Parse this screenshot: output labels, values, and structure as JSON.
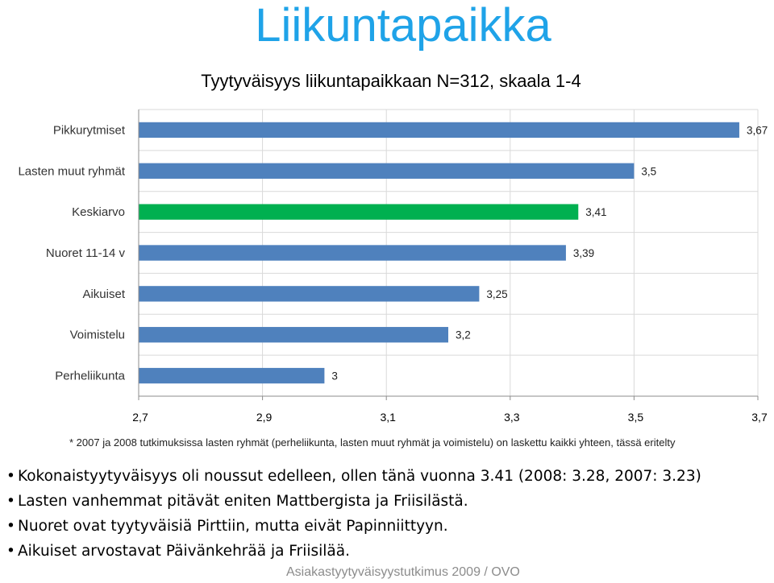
{
  "slide": {
    "title": "Liikuntapaikka",
    "footnote": "* 2007 ja 2008 tutkimuksissa lasten ryhmät  (perheliikunta, lasten muut ryhmät ja voimistelu) on laskettu kaikki yhteen, tässä eritelty",
    "bullets": [
      "Kokonaistyytyväisyys oli noussut edelleen, ollen tänä vuonna 3.41 (2008: 3.28, 2007: 3.23)",
      "Lasten vanhemmat pitävät eniten Mattbergista ja Friisilästä.",
      "Nuoret ovat tyytyväisiä Pirttiin, mutta eivät Papinniittyyn.",
      "Aikuiset arvostavat Päivänkehrää ja Friisilää."
    ],
    "source": "Asiakastyytyväisyystutkimus 2009 / OVO"
  },
  "chart_data": {
    "type": "bar",
    "orientation": "horizontal",
    "title": "Tyytyväisyys liikuntapaikkaan N=312, skaala 1-4",
    "categories": [
      "Pikkurytmiset",
      "Lasten muut ryhmät",
      "Keskiarvo",
      "Nuoret 11-14 v",
      "Aikuiset",
      "Voimistelu",
      "Perheliikunta"
    ],
    "values": [
      3.67,
      3.5,
      3.41,
      3.39,
      3.25,
      3.2,
      3
    ],
    "data_labels": [
      "3,67",
      "3,5",
      "3,41",
      "3,39",
      "3,25",
      "3,2",
      "3"
    ],
    "highlight_index": 2,
    "xlim": [
      2.7,
      3.7
    ],
    "xticks": [
      2.7,
      2.9,
      3.1,
      3.3,
      3.5,
      3.7
    ],
    "xtick_labels": [
      "2,7",
      "2,9",
      "3,1",
      "3,3",
      "3,5",
      "3,7"
    ],
    "grid": true,
    "legend": "none",
    "colors": {
      "bar": "#4f81bd",
      "highlight": "#00b050",
      "grid": "#d9d9d9",
      "axis": "#8c8c8c"
    }
  }
}
